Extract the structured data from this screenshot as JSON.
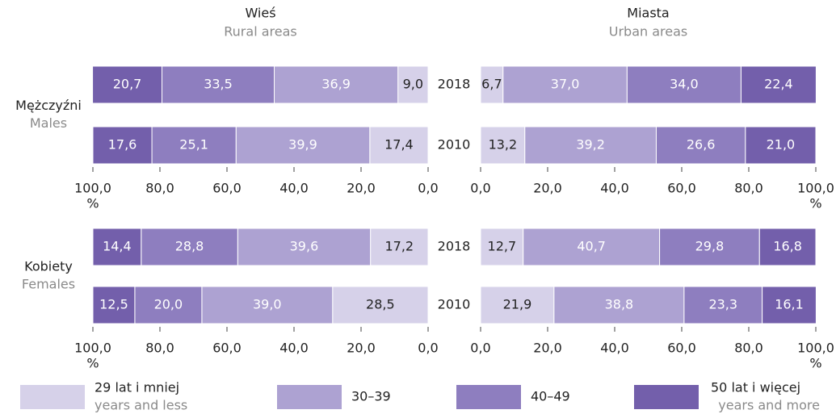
{
  "columns": [
    {
      "title": "Wieś",
      "subtitle": "Rural areas"
    },
    {
      "title": "Miasta",
      "subtitle": "Urban areas"
    }
  ],
  "rows": [
    {
      "title": "Mężczyźni",
      "subtitle": "Males"
    },
    {
      "title": "Kobiety",
      "subtitle": "Females"
    }
  ],
  "chart_data": {
    "type": "bar",
    "orientation": "horizontal",
    "stacked": true,
    "categories": [
      "2018",
      "2010"
    ],
    "series": [
      {
        "name": "29 lat i mniej",
        "subname": "years and less",
        "color": "#d6d1e9"
      },
      {
        "name": "30–39",
        "color": "#ada2d2"
      },
      {
        "name": "40–49",
        "color": "#8e7ebf"
      },
      {
        "name": "50 lat i więcej",
        "subname": "years and more",
        "color": "#735fab"
      }
    ],
    "panels": [
      {
        "xlim": [
          100,
          0
        ],
        "xlabel": "%",
        "xticks": [
          {
            "value": 100,
            "label": "100,0"
          },
          {
            "value": 80,
            "label": "80,0"
          },
          {
            "value": 60,
            "label": "60,0"
          },
          {
            "value": 40,
            "label": "40,0"
          },
          {
            "value": 20,
            "label": "20,0"
          },
          {
            "value": 0,
            "label": "0,0"
          }
        ],
        "series": [
          {
            "values": [
              9.0,
              17.4
            ],
            "value_labels": [
              "9,0",
              "17,4"
            ]
          },
          {
            "values": [
              36.9,
              39.9
            ],
            "value_labels": [
              "36,9",
              "39,9"
            ]
          },
          {
            "values": [
              33.5,
              25.1
            ],
            "value_labels": [
              "33,5",
              "25,1"
            ]
          },
          {
            "values": [
              20.7,
              17.6
            ],
            "value_labels": [
              "20,7",
              "17,6"
            ]
          }
        ]
      },
      {
        "xlim": [
          0,
          100
        ],
        "xlabel": "%",
        "xticks": [
          {
            "value": 0,
            "label": "0,0"
          },
          {
            "value": 20,
            "label": "20,0"
          },
          {
            "value": 40,
            "label": "40,0"
          },
          {
            "value": 60,
            "label": "60,0"
          },
          {
            "value": 80,
            "label": "80,0"
          },
          {
            "value": 100,
            "label": "100,0"
          }
        ],
        "series": [
          {
            "values": [
              6.7,
              13.2
            ],
            "value_labels": [
              "6,7",
              "13,2"
            ]
          },
          {
            "values": [
              37.0,
              39.2
            ],
            "value_labels": [
              "37,0",
              "39,2"
            ]
          },
          {
            "values": [
              34.0,
              26.6
            ],
            "value_labels": [
              "34,0",
              "26,6"
            ]
          },
          {
            "values": [
              22.4,
              21.0
            ],
            "value_labels": [
              "22,4",
              "21,0"
            ]
          }
        ]
      },
      {
        "xlim": [
          100,
          0
        ],
        "xlabel": "%",
        "xticks": [
          {
            "value": 100,
            "label": "100,0"
          },
          {
            "value": 80,
            "label": "80,0"
          },
          {
            "value": 60,
            "label": "60,0"
          },
          {
            "value": 40,
            "label": "40,0"
          },
          {
            "value": 20,
            "label": "20,0"
          },
          {
            "value": 0,
            "label": "0,0"
          }
        ],
        "series": [
          {
            "values": [
              17.2,
              28.5
            ],
            "value_labels": [
              "17,2",
              "28,5"
            ]
          },
          {
            "values": [
              39.6,
              39.0
            ],
            "value_labels": [
              "39,6",
              "39,0"
            ]
          },
          {
            "values": [
              28.8,
              20.0
            ],
            "value_labels": [
              "28,8",
              "20,0"
            ]
          },
          {
            "values": [
              14.4,
              12.5
            ],
            "value_labels": [
              "14,4",
              "12,5"
            ]
          }
        ]
      },
      {
        "xlim": [
          0,
          100
        ],
        "xlabel": "%",
        "xticks": [
          {
            "value": 0,
            "label": "0,0"
          },
          {
            "value": 20,
            "label": "20,0"
          },
          {
            "value": 40,
            "label": "40,0"
          },
          {
            "value": 60,
            "label": "60,0"
          },
          {
            "value": 80,
            "label": "80,0"
          },
          {
            "value": 100,
            "label": "100,0"
          }
        ],
        "series": [
          {
            "values": [
              12.7,
              21.9
            ],
            "value_labels": [
              "12,7",
              "21,9"
            ]
          },
          {
            "values": [
              40.7,
              38.8
            ],
            "value_labels": [
              "40,7",
              "38,8"
            ]
          },
          {
            "values": [
              29.8,
              23.3
            ],
            "value_labels": [
              "29,8",
              "23,3"
            ]
          },
          {
            "values": [
              16.8,
              16.1
            ],
            "value_labels": [
              "16,8",
              "16,1"
            ]
          }
        ]
      }
    ]
  }
}
